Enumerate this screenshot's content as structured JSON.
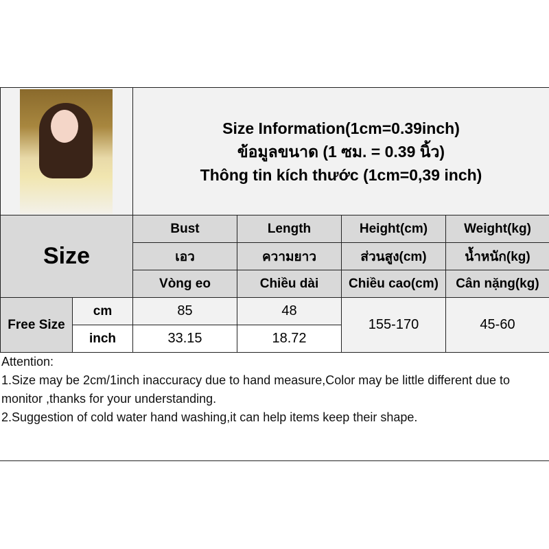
{
  "title": {
    "line1": "Size Information(1cm=0.39inch)",
    "line2": "ข้อมูลขนาด (1 ซม. = 0.39 นิ้ว)",
    "line3": "Thông tin kích thước (1cm=0,39 inch)"
  },
  "table": {
    "size_label": "Size",
    "headers": [
      {
        "en": "Bust",
        "th": "เอว",
        "vi": "Vòng eo"
      },
      {
        "en": "Length",
        "th": "ความยาว",
        "vi": "Chiều dài"
      },
      {
        "en": "Height(cm)",
        "th": "ส่วนสูง(cm)",
        "vi": "Chiều cao(cm)"
      },
      {
        "en": "Weight(kg)",
        "th": "น้ำหนัก(kg)",
        "vi": "Cân nặng(kg)"
      }
    ],
    "row_label": "Free Size",
    "units": [
      "cm",
      "inch"
    ],
    "cm": {
      "bust": "85",
      "length": "48"
    },
    "inch": {
      "bust": "33.15",
      "length": "18.72"
    },
    "height": "155-170",
    "weight": "45-60"
  },
  "notes": {
    "heading": "Attention:",
    "n1": "1.Size may be 2cm/1inch inaccuracy due to hand measure,Color may be little different due to monitor ,thanks for your understanding.",
    "n2": "2.Suggestion of cold water hand washing,it can help items keep their shape."
  }
}
